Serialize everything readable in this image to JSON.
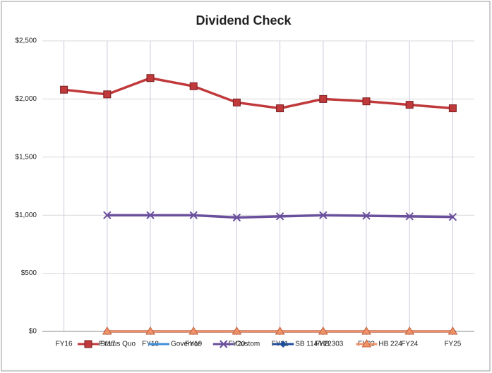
{
  "chart_data": {
    "type": "line",
    "title": "Dividend Check",
    "categories": [
      "FY16",
      "FY17",
      "FY18",
      "FY19",
      "FY20",
      "FY21",
      "FY22",
      "FY23",
      "FY24",
      "FY25"
    ],
    "series": [
      {
        "name": "Status Quo",
        "color": "#c0393b",
        "marker": "square",
        "values": [
          2080,
          2040,
          2180,
          2110,
          1970,
          1920,
          2000,
          1980,
          1950,
          1920
        ]
      },
      {
        "name": "Governor",
        "color": "#3f8fd8",
        "marker": "none",
        "values": [
          null,
          0,
          0,
          0,
          0,
          0,
          0,
          0,
          0,
          0
        ]
      },
      {
        "name": "Custom",
        "color": "#6a4f9c",
        "marker": "x",
        "values": [
          null,
          1000,
          1000,
          1000,
          980,
          990,
          1000,
          995,
          990,
          985
        ]
      },
      {
        "name": "SB 114/HB 303",
        "color": "#1f4e99",
        "marker": "diamond",
        "values": [
          null,
          0,
          0,
          0,
          0,
          0,
          0,
          0,
          0,
          0
        ]
      },
      {
        "name": "HB 224",
        "color": "#f0926a",
        "marker": "triangle",
        "values": [
          null,
          0,
          0,
          0,
          0,
          0,
          0,
          0,
          0,
          0
        ]
      }
    ],
    "ylim": [
      0,
      2500
    ],
    "yticks": [
      {
        "value": 0,
        "label": "$0"
      },
      {
        "value": 500,
        "label": "$500"
      },
      {
        "value": 1000,
        "label": "$1,000"
      },
      {
        "value": 1500,
        "label": "$1,500"
      },
      {
        "value": 2000,
        "label": "$2,000"
      },
      {
        "value": 2500,
        "label": "$2,500"
      }
    ],
    "grid": true,
    "legend": "bottom"
  }
}
